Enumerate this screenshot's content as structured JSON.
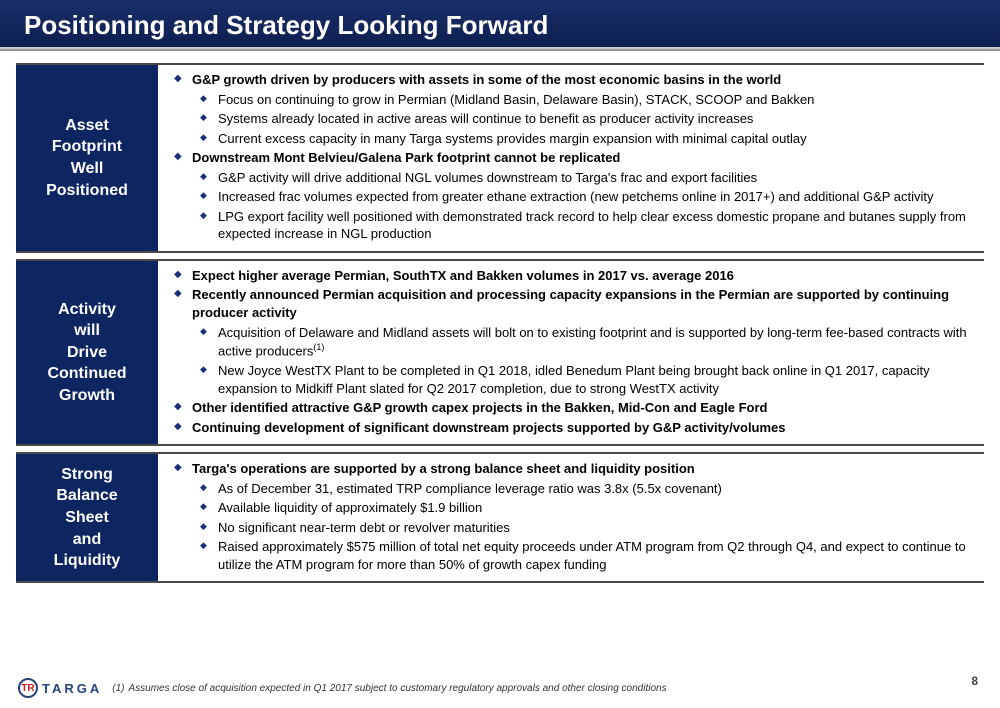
{
  "colors": {
    "dark_blue": "#0d2560",
    "bullet_blue": "#1a2f7a",
    "title_gradient_top": "#1a2f6b",
    "title_gradient_bottom": "#0d1f4f"
  },
  "typography": {
    "title_fontsize": 26,
    "section_label_fontsize": 16,
    "body_fontsize": 13,
    "footnote_fontsize": 10
  },
  "title": "Positioning and Strategy Looking Forward",
  "sections": [
    {
      "label_lines": [
        "Asset",
        "Footprint",
        "Well",
        "Positioned"
      ],
      "items": [
        {
          "bold": true,
          "text": "G&P growth driven by producers with assets in some of the most economic basins in the world",
          "sub": [
            "Focus on continuing to grow in Permian (Midland Basin, Delaware Basin), STACK, SCOOP and Bakken",
            "Systems already located in active areas will continue to benefit as producer activity increases",
            "Current excess capacity in many Targa systems provides margin expansion with minimal capital outlay"
          ]
        },
        {
          "bold": true,
          "text": "Downstream Mont Belvieu/Galena Park footprint cannot be replicated",
          "sub": [
            "G&P activity will drive additional NGL volumes downstream to Targa's frac and export facilities",
            "Increased frac volumes expected from greater ethane extraction (new petchems online in 2017+) and additional G&P activity",
            "LPG export facility well positioned with demonstrated track record to help clear excess domestic propane and butanes supply from expected increase in NGL production"
          ]
        }
      ]
    },
    {
      "label_lines": [
        "Activity",
        "will",
        "Drive",
        "Continued",
        "Growth"
      ],
      "items": [
        {
          "bold": true,
          "text": "Expect higher average Permian, SouthTX and Bakken volumes in 2017 vs. average 2016",
          "sub": []
        },
        {
          "bold": true,
          "text": "Recently announced Permian acquisition and processing capacity expansions in the Permian are supported by continuing producer activity",
          "sub": [
            "Acquisition of Delaware and Midland assets will bolt on to existing footprint and is supported by long-term fee-based contracts with active producers",
            "New Joyce WestTX Plant to be completed in Q1 2018, idled Benedum Plant being brought back online in Q1 2017, capacity expansion to Midkiff Plant slated for Q2 2017 completion, due to strong WestTX activity"
          ],
          "sub_superscripts": [
            "(1)",
            null
          ]
        },
        {
          "bold": true,
          "text": "Other identified attractive G&P growth capex projects in the Bakken, Mid-Con and Eagle Ford",
          "sub": []
        },
        {
          "bold": true,
          "text": "Continuing development of significant downstream projects supported by G&P activity/volumes",
          "sub": []
        }
      ]
    },
    {
      "label_lines": [
        "Strong",
        "Balance",
        "Sheet",
        "and",
        "Liquidity"
      ],
      "items": [
        {
          "bold": true,
          "text": "Targa's operations are supported by a strong balance sheet and liquidity position",
          "sub": [
            "As of December 31, estimated TRP compliance leverage ratio was 3.8x (5.5x covenant)",
            "Available liquidity of approximately $1.9 billion",
            "No significant near-term debt or revolver maturities",
            "Raised approximately $575 million of total net equity proceeds under ATM program from Q2 through Q4, and expect to continue to utilize the ATM program for more than 50% of growth capex funding"
          ]
        }
      ]
    }
  ],
  "footer": {
    "logo_letters": "TR",
    "logo_text": "TARGA",
    "footnote_marker": "(1)",
    "footnote_text": "Assumes close of acquisition expected in Q1 2017 subject to customary regulatory approvals and other closing conditions",
    "page_number": "8"
  }
}
